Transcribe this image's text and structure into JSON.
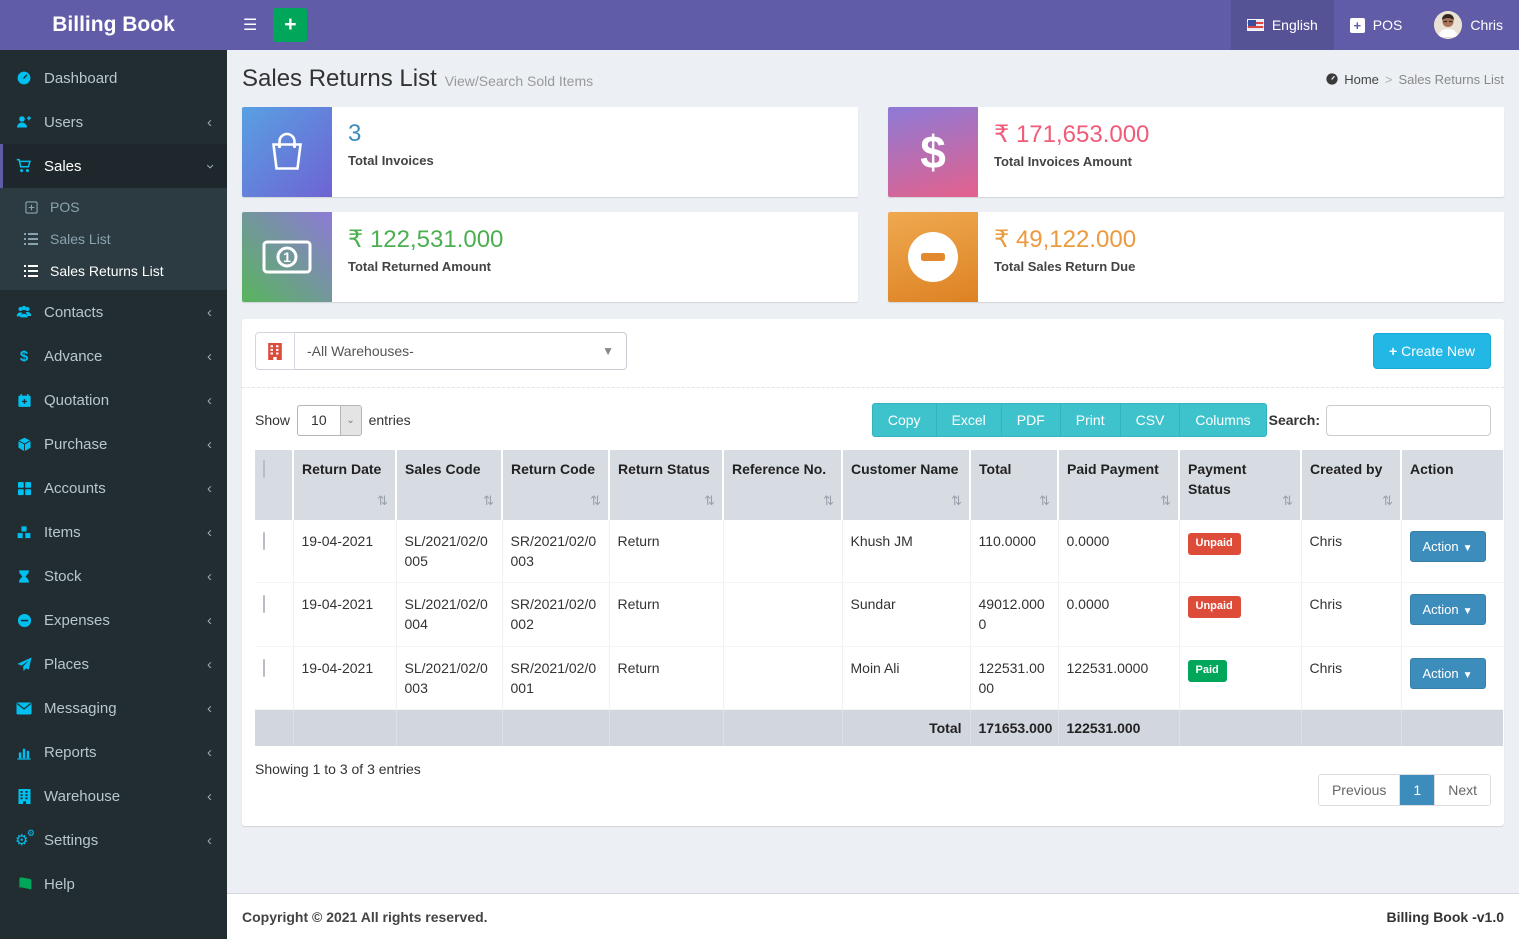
{
  "app": {
    "title": "Billing Book",
    "footer_left": "Copyright © 2021 All rights reserved.",
    "footer_right": "Billing Book -v1.0"
  },
  "header": {
    "language": "English",
    "pos_label": "POS",
    "user_name": "Chris"
  },
  "sidebar": {
    "dashboard": "Dashboard",
    "users": "Users",
    "sales": "Sales",
    "pos": "POS",
    "sales_list": "Sales List",
    "sales_returns_list": "Sales Returns List",
    "contacts": "Contacts",
    "advance": "Advance",
    "quotation": "Quotation",
    "purchase": "Purchase",
    "accounts": "Accounts",
    "items": "Items",
    "stock": "Stock",
    "expenses": "Expenses",
    "places": "Places",
    "messaging": "Messaging",
    "reports": "Reports",
    "warehouse": "Warehouse",
    "settings": "Settings",
    "help": "Help"
  },
  "page": {
    "title": "Sales Returns List",
    "subtitle": "View/Search Sold Items",
    "breadcrumb_home": "Home",
    "breadcrumb_current": "Sales Returns List"
  },
  "stats": [
    {
      "value": "3",
      "label": "Total Invoices",
      "accent": "#3c8dbc"
    },
    {
      "value": "₹ 171,653.000",
      "label": "Total Invoices Amount",
      "accent": "#ef5b78"
    },
    {
      "value": "₹ 122,531.000",
      "label": "Total Returned Amount",
      "accent": "#4caf50"
    },
    {
      "value": "₹ 49,122.000",
      "label": "Total Sales Return Due",
      "accent": "#ec9a3d"
    }
  ],
  "filters": {
    "warehouse_selected": "-All Warehouses-",
    "create_new_label": "Create New"
  },
  "table": {
    "show_label": "Show",
    "page_size": "10",
    "entries_label": "entries",
    "export_buttons": [
      "Copy",
      "Excel",
      "PDF",
      "Print",
      "CSV",
      "Columns"
    ],
    "search_label": "Search:",
    "search_value": "",
    "columns": [
      "Return Date",
      "Sales Code",
      "Return Code",
      "Return Status",
      "Reference No.",
      "Customer Name",
      "Total",
      "Paid Payment",
      "Payment Status",
      "Created by",
      "Action"
    ],
    "action_label": "Action",
    "status_colors": {
      "Paid": "#00a65a",
      "Unpaid": "#dd4b39"
    },
    "rows": [
      {
        "date": "19-04-2021",
        "sales_code": "SL/2021/02/0005",
        "return_code": "SR/2021/02/0003",
        "status": "Return",
        "reference": "",
        "customer": "Khush JM",
        "total": "110.0000",
        "paid": "0.0000",
        "payment_status": "Unpaid",
        "created_by": "Chris"
      },
      {
        "date": "19-04-2021",
        "sales_code": "SL/2021/02/0004",
        "return_code": "SR/2021/02/0002",
        "status": "Return",
        "reference": "",
        "customer": "Sundar",
        "total": "49012.0000",
        "paid": "0.0000",
        "payment_status": "Unpaid",
        "created_by": "Chris"
      },
      {
        "date": "19-04-2021",
        "sales_code": "SL/2021/02/0003",
        "return_code": "SR/2021/02/0001",
        "status": "Return",
        "reference": "",
        "customer": "Moin Ali",
        "total": "122531.0000",
        "paid": "122531.0000",
        "payment_status": "Paid",
        "created_by": "Chris"
      }
    ],
    "footer": {
      "label": "Total",
      "total": "171653.000",
      "paid_payment": "122531.000"
    },
    "summary": "Showing 1 to 3 of 3 entries",
    "pagination": {
      "previous": "Previous",
      "current": "1",
      "next": "Next"
    }
  }
}
